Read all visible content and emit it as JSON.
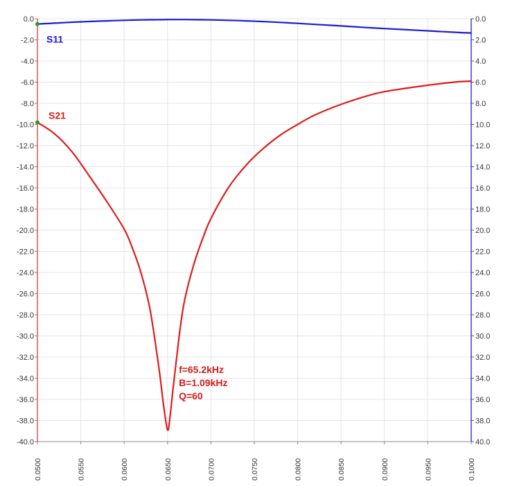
{
  "chart_data": {
    "type": "line",
    "x": [
      0.05,
      0.052,
      0.054,
      0.056,
      0.058,
      0.06,
      0.061,
      0.062,
      0.063,
      0.064,
      0.0645,
      0.065,
      0.0653,
      0.0657,
      0.066,
      0.0665,
      0.067,
      0.068,
      0.069,
      0.07,
      0.072,
      0.074,
      0.076,
      0.078,
      0.08,
      0.082,
      0.085,
      0.088,
      0.09,
      0.094,
      0.098,
      0.1
    ],
    "series": [
      {
        "name": "S11",
        "color": "#1a1ad4",
        "values": [
          -0.5,
          -0.42,
          -0.33,
          -0.26,
          -0.2,
          -0.15,
          -0.13,
          -0.11,
          -0.1,
          -0.09,
          -0.09,
          -0.08,
          -0.08,
          -0.08,
          -0.08,
          -0.08,
          -0.08,
          -0.09,
          -0.1,
          -0.11,
          -0.15,
          -0.2,
          -0.27,
          -0.35,
          -0.44,
          -0.54,
          -0.68,
          -0.84,
          -0.93,
          -1.1,
          -1.28,
          -1.35
        ]
      },
      {
        "name": "S21",
        "color": "#e01a1a",
        "values": [
          -9.8,
          -10.9,
          -12.6,
          -14.9,
          -17.3,
          -19.9,
          -21.8,
          -24.2,
          -27.6,
          -33.0,
          -36.3,
          -38.9,
          -37.5,
          -34.5,
          -32.4,
          -29.0,
          -26.5,
          -23.3,
          -20.9,
          -18.9,
          -16.0,
          -13.9,
          -12.3,
          -11.0,
          -10.0,
          -9.1,
          -8.1,
          -7.3,
          -6.9,
          -6.4,
          -6.0,
          -5.9
        ]
      }
    ],
    "y_ticks_left": [
      "0.0",
      "-2.0",
      "-4.0",
      "-6.0",
      "-8.0",
      "-10.0",
      "-12.0",
      "-14.0",
      "-16.0",
      "-18.0",
      "-20.0",
      "-22.0",
      "-24.0",
      "-26.0",
      "-28.0",
      "-30.0",
      "-32.0",
      "-34.0",
      "-36.0",
      "-38.0",
      "-40.0"
    ],
    "y_ticks_right": [
      "0.0",
      "2.0",
      "4.0",
      "6.0",
      "8.0",
      "10.0",
      "12.0",
      "14.0",
      "16.0",
      "18.0",
      "20.0",
      "22.0",
      "24.0",
      "26.0",
      "28.0",
      "30.0",
      "32.0",
      "34.0",
      "36.0",
      "38.0",
      "40.0"
    ],
    "x_ticks": [
      "0.0500",
      "0.0550",
      "0.0600",
      "0.0650",
      "0.0700",
      "0.0750",
      "0.0800",
      "0.0850",
      "0.0900",
      "0.0950",
      "0.1000"
    ],
    "xlim": [
      0.05,
      0.1
    ],
    "ylim": [
      -40,
      0
    ],
    "grid": true,
    "annotation": {
      "lines": [
        "f=65.2kHz",
        "B=1.09kHz",
        "Q=60"
      ],
      "color": "#d41a1a"
    },
    "left_axis_color": "#e05555",
    "right_axis_color": "#3a3ad8",
    "grid_color": "#e4e4e4"
  }
}
